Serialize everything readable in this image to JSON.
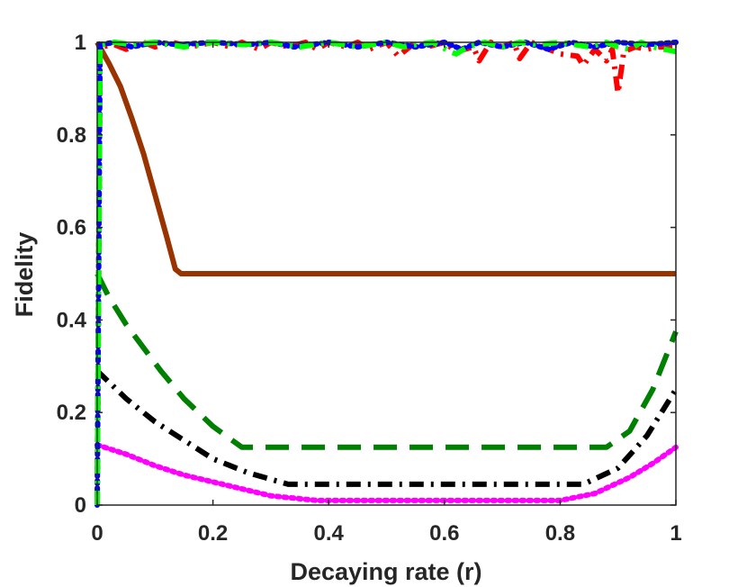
{
  "chart_data": {
    "type": "line",
    "title": "",
    "xlabel": "Decaying rate (r)",
    "ylabel": "Fidelity",
    "xlim": [
      0,
      1
    ],
    "ylim": [
      0,
      1
    ],
    "xticks": [
      "0",
      "0.2",
      "0.4",
      "0.6",
      "0.8",
      "1"
    ],
    "yticks": [
      "0",
      "0.2",
      "0.4",
      "0.6",
      "0.8",
      "1"
    ],
    "grid": false,
    "series": [
      {
        "color": "#993300",
        "style": "solid",
        "points": [
          [
            0,
            1
          ],
          [
            0.02,
            0.955
          ],
          [
            0.04,
            0.905
          ],
          [
            0.06,
            0.835
          ],
          [
            0.08,
            0.76
          ],
          [
            0.1,
            0.67
          ],
          [
            0.12,
            0.58
          ],
          [
            0.135,
            0.51
          ],
          [
            0.145,
            0.5
          ],
          [
            1,
            0.5
          ]
        ]
      },
      {
        "color": "#008000",
        "style": "dashed",
        "points": [
          [
            0,
            0.5
          ],
          [
            0.02,
            0.45
          ],
          [
            0.05,
            0.39
          ],
          [
            0.08,
            0.34
          ],
          [
            0.11,
            0.29
          ],
          [
            0.15,
            0.23
          ],
          [
            0.2,
            0.17
          ],
          [
            0.25,
            0.125
          ],
          [
            0.88,
            0.125
          ],
          [
            0.92,
            0.16
          ],
          [
            0.96,
            0.25
          ],
          [
            1,
            0.375
          ]
        ]
      },
      {
        "color": "#000000",
        "style": "dashdot",
        "points": [
          [
            0,
            0.29
          ],
          [
            0.05,
            0.23
          ],
          [
            0.1,
            0.18
          ],
          [
            0.15,
            0.14
          ],
          [
            0.2,
            0.1
          ],
          [
            0.26,
            0.07
          ],
          [
            0.33,
            0.045
          ],
          [
            0.84,
            0.045
          ],
          [
            0.9,
            0.08
          ],
          [
            0.95,
            0.15
          ],
          [
            1,
            0.25
          ]
        ]
      },
      {
        "color": "#ff00ff",
        "style": "dotted",
        "points": [
          [
            0,
            0.13
          ],
          [
            0.05,
            0.11
          ],
          [
            0.1,
            0.085
          ],
          [
            0.15,
            0.065
          ],
          [
            0.2,
            0.05
          ],
          [
            0.25,
            0.035
          ],
          [
            0.3,
            0.02
          ],
          [
            0.38,
            0.01
          ],
          [
            0.8,
            0.01
          ],
          [
            0.86,
            0.025
          ],
          [
            0.92,
            0.06
          ],
          [
            0.96,
            0.09
          ],
          [
            1,
            0.125
          ]
        ]
      },
      {
        "color": "#ff0000",
        "style": "dashdot",
        "points": [
          [
            0,
            0
          ],
          [
            0.005,
            0.99
          ],
          [
            0.03,
            0.995
          ],
          [
            0.05,
            0.985
          ],
          [
            0.08,
            1
          ],
          [
            0.1,
            0.99
          ],
          [
            0.13,
            1
          ],
          [
            0.16,
            0.99
          ],
          [
            0.2,
            1
          ],
          [
            0.23,
            0.99
          ],
          [
            0.25,
            1
          ],
          [
            0.28,
            0.985
          ],
          [
            0.3,
            1
          ],
          [
            0.33,
            0.99
          ],
          [
            0.36,
            1
          ],
          [
            0.38,
            0.985
          ],
          [
            0.4,
            1
          ],
          [
            0.43,
            0.99
          ],
          [
            0.45,
            1
          ],
          [
            0.47,
            0.985
          ],
          [
            0.5,
            1
          ],
          [
            0.52,
            0.97
          ],
          [
            0.55,
            1
          ],
          [
            0.57,
            0.99
          ],
          [
            0.6,
            1
          ],
          [
            0.62,
            0.98
          ],
          [
            0.65,
            0.99
          ],
          [
            0.66,
            0.96
          ],
          [
            0.68,
            1
          ],
          [
            0.7,
            0.99
          ],
          [
            0.72,
            1
          ],
          [
            0.73,
            0.965
          ],
          [
            0.75,
            1
          ],
          [
            0.77,
            0.99
          ],
          [
            0.8,
            0.975
          ],
          [
            0.83,
            0.97
          ],
          [
            0.84,
            0.95
          ],
          [
            0.86,
            0.985
          ],
          [
            0.88,
            0.96
          ],
          [
            0.89,
            0.985
          ],
          [
            0.9,
            0.89
          ],
          [
            0.91,
            0.98
          ],
          [
            0.93,
            0.99
          ],
          [
            0.95,
            0.985
          ],
          [
            0.97,
            0.99
          ],
          [
            1,
            0.99
          ]
        ]
      },
      {
        "color": "#0000ff",
        "style": "dotted",
        "points": [
          [
            0,
            0
          ],
          [
            0.005,
            0.995
          ],
          [
            0.03,
            1
          ],
          [
            0.06,
            0.99
          ],
          [
            0.1,
            1
          ],
          [
            0.14,
            0.995
          ],
          [
            0.2,
            1
          ],
          [
            0.26,
            0.995
          ],
          [
            0.3,
            1
          ],
          [
            0.34,
            0.99
          ],
          [
            0.4,
            1
          ],
          [
            0.45,
            0.99
          ],
          [
            0.5,
            1
          ],
          [
            0.55,
            0.99
          ],
          [
            0.6,
            1
          ],
          [
            0.63,
            0.985
          ],
          [
            0.66,
            1
          ],
          [
            0.7,
            0.99
          ],
          [
            0.74,
            1
          ],
          [
            0.78,
            0.985
          ],
          [
            0.82,
            1
          ],
          [
            0.86,
            0.99
          ],
          [
            0.9,
            1
          ],
          [
            0.95,
            0.995
          ],
          [
            1,
            1
          ]
        ]
      },
      {
        "color": "#00ff00",
        "style": "dashdot",
        "points": [
          [
            0,
            0
          ],
          [
            0.005,
            0.995
          ],
          [
            0.03,
            1
          ],
          [
            0.06,
            0.995
          ],
          [
            0.1,
            1
          ],
          [
            0.15,
            0.99
          ],
          [
            0.2,
            1
          ],
          [
            0.25,
            0.995
          ],
          [
            0.3,
            1
          ],
          [
            0.35,
            0.99
          ],
          [
            0.4,
            1
          ],
          [
            0.45,
            0.99
          ],
          [
            0.5,
            1
          ],
          [
            0.53,
            0.99
          ],
          [
            0.55,
            0.995
          ],
          [
            0.58,
            1
          ],
          [
            0.61,
            0.98
          ],
          [
            0.62,
            0.975
          ],
          [
            0.64,
            0.99
          ],
          [
            0.67,
            1
          ],
          [
            0.7,
            0.99
          ],
          [
            0.73,
            1
          ],
          [
            0.76,
            0.995
          ],
          [
            0.8,
            1
          ],
          [
            0.85,
            0.99
          ],
          [
            0.88,
            1
          ],
          [
            0.9,
            0.99
          ],
          [
            0.92,
            0.985
          ],
          [
            0.94,
            1
          ],
          [
            0.96,
            0.99
          ],
          [
            1,
            0.98
          ]
        ]
      }
    ]
  }
}
